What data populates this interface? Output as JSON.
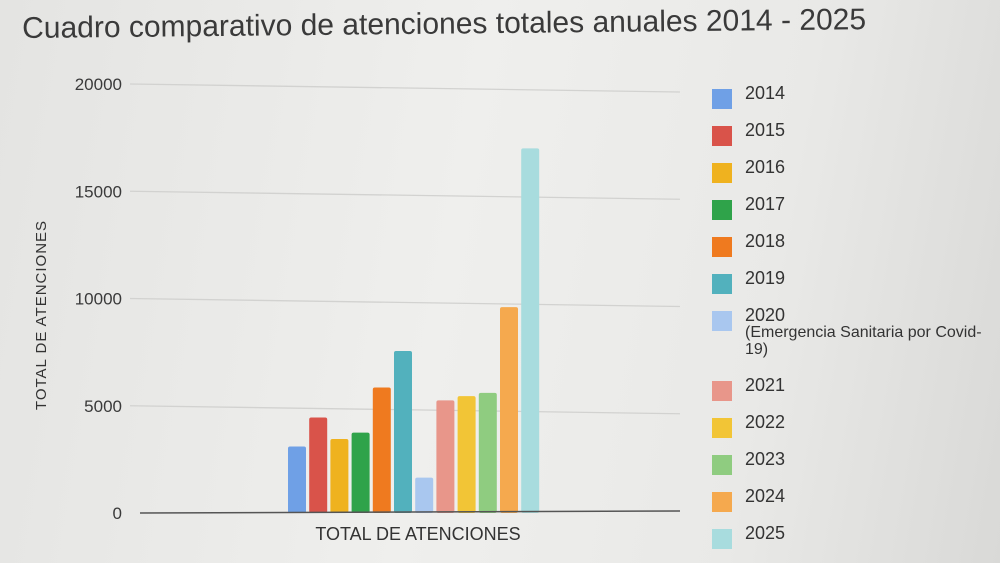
{
  "chart_data": {
    "type": "bar",
    "title": "Cuadro comparativo de atenciones totales anuales 2014 - 2025",
    "xlabel": "TOTAL DE ATENCIONES",
    "ylabel": "TOTAL DE ATENCIONES",
    "ylim": [
      0,
      20000
    ],
    "yticks": [
      0,
      5000,
      10000,
      15000,
      20000
    ],
    "grid": true,
    "legend_position": "right",
    "categories": [
      "TOTAL DE ATENCIONES"
    ],
    "series": [
      {
        "name": "2014",
        "color": "#6fa0e6",
        "values": [
          3100
        ]
      },
      {
        "name": "2015",
        "color": "#d9534a",
        "values": [
          4450
        ]
      },
      {
        "name": "2016",
        "color": "#efb21f",
        "values": [
          3450
        ]
      },
      {
        "name": "2017",
        "color": "#2fa34a",
        "values": [
          3750
        ]
      },
      {
        "name": "2018",
        "color": "#ef7a1f",
        "values": [
          5850
        ]
      },
      {
        "name": "2019",
        "color": "#52b1bd",
        "values": [
          7550
        ]
      },
      {
        "name": "2020",
        "note": "(Emergencia Sanitaria por Covid-19)",
        "color": "#a9c7ef",
        "values": [
          1650
        ]
      },
      {
        "name": "2021",
        "color": "#e8968a",
        "values": [
          5250
        ]
      },
      {
        "name": "2022",
        "color": "#f2c536",
        "values": [
          5450
        ]
      },
      {
        "name": "2023",
        "color": "#8fcc80",
        "values": [
          5600
        ]
      },
      {
        "name": "2024",
        "color": "#f5a94e",
        "values": [
          9600
        ]
      },
      {
        "name": "2025",
        "color": "#a8dcde",
        "values": [
          17000
        ]
      }
    ]
  }
}
